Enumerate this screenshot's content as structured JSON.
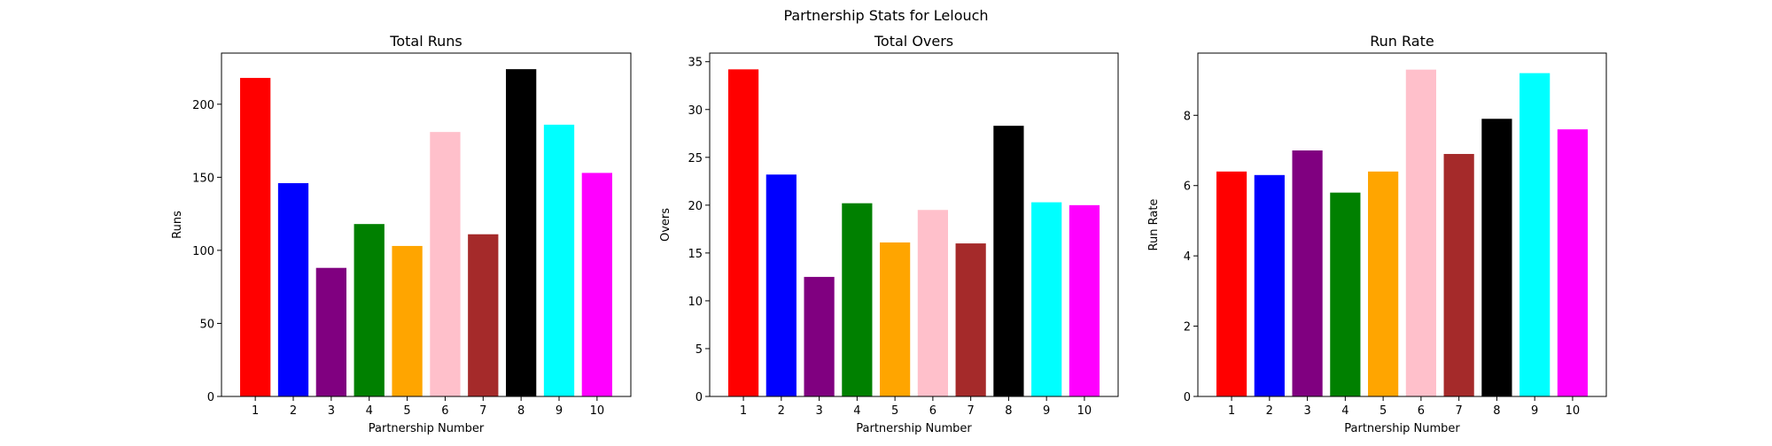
{
  "figure": {
    "suptitle": "Partnership Stats for Lelouch"
  },
  "chart_data": [
    {
      "type": "bar",
      "title": "Total Runs",
      "xlabel": "Partnership Number",
      "ylabel": "Runs",
      "categories": [
        "1",
        "2",
        "3",
        "4",
        "5",
        "6",
        "7",
        "8",
        "9",
        "10"
      ],
      "values": [
        218,
        146,
        88,
        118,
        103,
        181,
        111,
        224,
        186,
        153
      ],
      "colors": [
        "#ff0000",
        "#0000ff",
        "#800080",
        "#008000",
        "#ffa500",
        "#ffc0cb",
        "#a52a2a",
        "#000000",
        "#00ffff",
        "#ff00ff"
      ],
      "ylim": [
        0,
        235
      ],
      "yticks": [
        0,
        50,
        100,
        150,
        200
      ],
      "grid": false,
      "legend": "none"
    },
    {
      "type": "bar",
      "title": "Total Overs",
      "xlabel": "Partnership Number",
      "ylabel": "Overs",
      "categories": [
        "1",
        "2",
        "3",
        "4",
        "5",
        "6",
        "7",
        "8",
        "9",
        "10"
      ],
      "values": [
        34.2,
        23.2,
        12.5,
        20.2,
        16.1,
        19.5,
        16.0,
        28.3,
        20.3,
        20.0
      ],
      "colors": [
        "#ff0000",
        "#0000ff",
        "#800080",
        "#008000",
        "#ffa500",
        "#ffc0cb",
        "#a52a2a",
        "#000000",
        "#00ffff",
        "#ff00ff"
      ],
      "ylim": [
        0,
        35.9
      ],
      "yticks": [
        0,
        5,
        10,
        15,
        20,
        25,
        30,
        35
      ],
      "grid": false,
      "legend": "none"
    },
    {
      "type": "bar",
      "title": "Run Rate",
      "xlabel": "Partnership Number",
      "ylabel": "Run Rate",
      "categories": [
        "1",
        "2",
        "3",
        "4",
        "5",
        "6",
        "7",
        "8",
        "9",
        "10"
      ],
      "values": [
        6.4,
        6.3,
        7.0,
        5.8,
        6.4,
        9.3,
        6.9,
        7.9,
        9.2,
        7.6
      ],
      "colors": [
        "#ff0000",
        "#0000ff",
        "#800080",
        "#008000",
        "#ffa500",
        "#ffc0cb",
        "#a52a2a",
        "#000000",
        "#00ffff",
        "#ff00ff"
      ],
      "ylim": [
        0,
        9.77
      ],
      "yticks": [
        0,
        2,
        4,
        6,
        8
      ],
      "grid": false,
      "legend": "none"
    }
  ]
}
